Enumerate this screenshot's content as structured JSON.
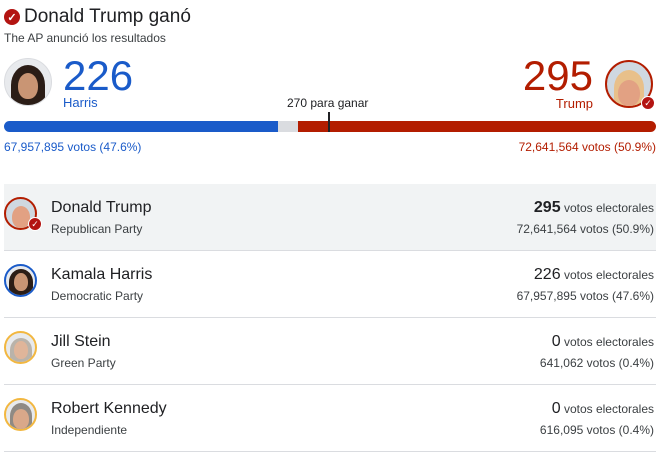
{
  "header": {
    "title": "Donald Trump ganó",
    "subtitle": "The AP anunció los resultados"
  },
  "summary": {
    "harris": {
      "electoral": "226",
      "label": "Harris",
      "votes": "67,957,895 votos (47.6%)"
    },
    "trump": {
      "electoral": "295",
      "label": "Trump",
      "votes": "72,641,564 votos (50.9%)"
    },
    "threshold": "270 para ganar",
    "total_electoral": 538
  },
  "colors": {
    "dem": "#1a5bc9",
    "rep": "#b31d00",
    "other": "#f2b740",
    "uncalled": "#dadce0"
  },
  "candidates": [
    {
      "name": "Donald Trump",
      "party": "Republican Party",
      "ev": "295",
      "ev_label": "votos electorales",
      "votes": "72,641,564 votos (50.9%)"
    },
    {
      "name": "Kamala Harris",
      "party": "Democratic Party",
      "ev": "226",
      "ev_label": "votos electorales",
      "votes": "67,957,895 votos (47.6%)"
    },
    {
      "name": "Jill Stein",
      "party": "Green Party",
      "ev": "0",
      "ev_label": "votos electorales",
      "votes": "641,062 votos (0.4%)"
    },
    {
      "name": "Robert Kennedy",
      "party": "Independiente",
      "ev": "0",
      "ev_label": "votos electorales",
      "votes": "616,095 votos (0.4%)"
    }
  ]
}
